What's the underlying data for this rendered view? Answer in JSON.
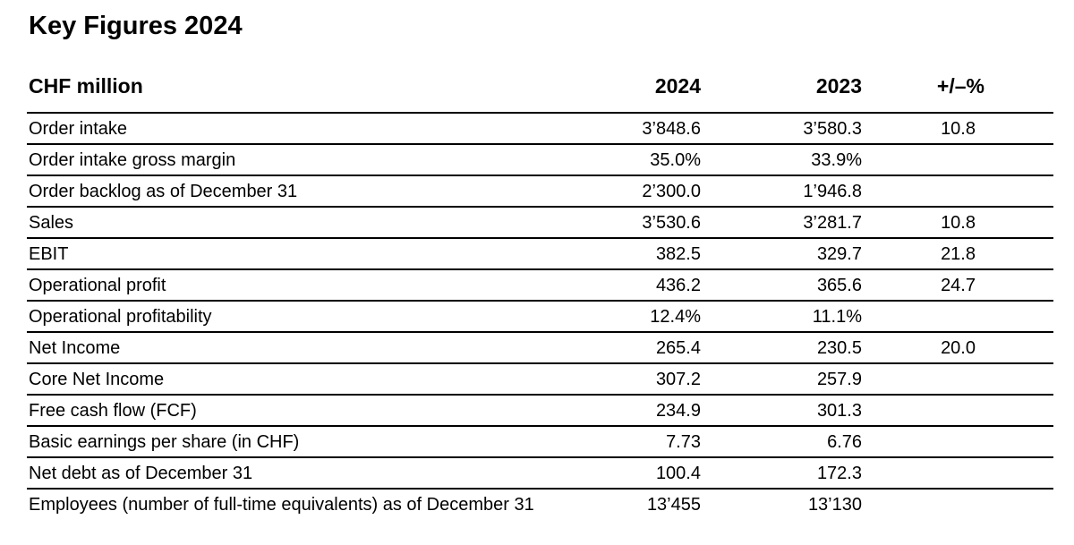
{
  "title": "Key Figures 2024",
  "table": {
    "unit_header": "CHF million",
    "columns": [
      "2024",
      "2023",
      "+/–%"
    ],
    "rows": [
      {
        "label": "Order intake",
        "y2024": "3’848.6",
        "y2023": "3’580.3",
        "change": "10.8"
      },
      {
        "label": "Order intake gross margin",
        "y2024": "35.0%",
        "y2023": "33.9%",
        "change": ""
      },
      {
        "label": "Order backlog as of December 31",
        "y2024": "2’300.0",
        "y2023": "1’946.8",
        "change": ""
      },
      {
        "label": "Sales",
        "y2024": "3’530.6",
        "y2023": "3’281.7",
        "change": "10.8"
      },
      {
        "label": "EBIT",
        "y2024": "382.5",
        "y2023": "329.7",
        "change": "21.8"
      },
      {
        "label": "Operational profit",
        "y2024": "436.2",
        "y2023": "365.6",
        "change": "24.7"
      },
      {
        "label": "Operational profitability",
        "y2024": "12.4%",
        "y2023": "11.1%",
        "change": ""
      },
      {
        "label": "Net Income",
        "y2024": "265.4",
        "y2023": "230.5",
        "change": "20.0"
      },
      {
        "label": "Core Net Income",
        "y2024": "307.2",
        "y2023": "257.9",
        "change": ""
      },
      {
        "label": "Free cash flow (FCF)",
        "y2024": "234.9",
        "y2023": "301.3",
        "change": ""
      },
      {
        "label": "Basic earnings per share (in CHF)",
        "y2024": "7.73",
        "y2023": "6.76",
        "change": ""
      },
      {
        "label": "Net debt as of December 31",
        "y2024": "100.4",
        "y2023": "172.3",
        "change": ""
      },
      {
        "label": "Employees (number of full-time equivalents) as of December 31",
        "y2024": "13’455",
        "y2023": "13’130",
        "change": ""
      }
    ]
  }
}
